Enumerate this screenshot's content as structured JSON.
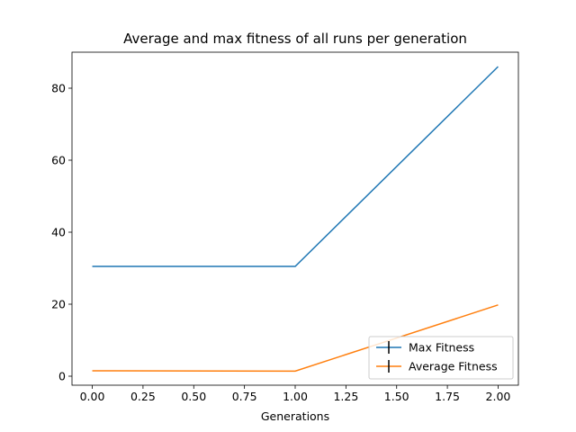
{
  "chart_data": {
    "type": "line",
    "title": "Average and max fitness of all runs per generation",
    "xlabel": "Generations",
    "ylabel": "",
    "xlim": [
      -0.1,
      2.1
    ],
    "ylim": [
      -2.5,
      90
    ],
    "x_ticks": [
      0.0,
      0.25,
      0.5,
      0.75,
      1.0,
      1.25,
      1.5,
      1.75,
      2.0
    ],
    "x_tick_labels": [
      "0.00",
      "0.25",
      "0.50",
      "0.75",
      "1.00",
      "1.25",
      "1.50",
      "1.75",
      "2.00"
    ],
    "y_ticks": [
      0,
      20,
      40,
      60,
      80
    ],
    "y_tick_labels": [
      "0",
      "20",
      "40",
      "60",
      "80"
    ],
    "grid": false,
    "legend_position": "lower-right",
    "x": [
      0,
      1,
      2
    ],
    "series": [
      {
        "name": "Max Fitness",
        "color": "#1f77b4",
        "values": [
          30.5,
          30.5,
          86
        ]
      },
      {
        "name": "Average Fitness",
        "color": "#ff7f0e",
        "values": [
          1.5,
          1.4,
          19.8
        ]
      }
    ],
    "legend_marker_color": "#000000"
  }
}
